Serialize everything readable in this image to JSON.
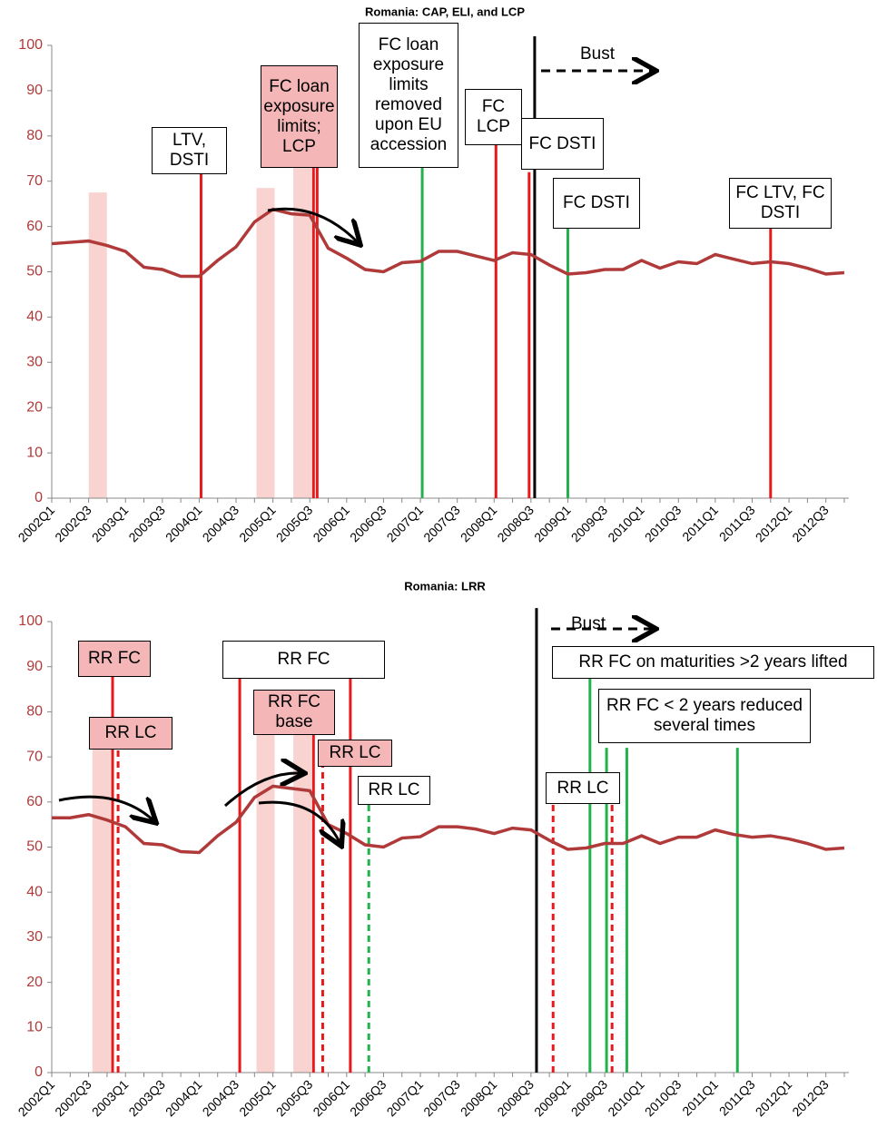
{
  "chart_data": [
    {
      "type": "line",
      "title": "Romania: CAP, ELI, and LCP",
      "categories": [
        "2002Q1",
        null,
        "2002Q3",
        null,
        "2003Q1",
        null,
        "2003Q3",
        null,
        "2004Q1",
        null,
        "2004Q3",
        null,
        "2005Q1",
        null,
        "2005Q3",
        null,
        "2006Q1",
        null,
        "2006Q3",
        null,
        "2007Q1",
        null,
        "2007Q3",
        null,
        "2008Q1",
        null,
        "2008Q3",
        null,
        "2009Q1",
        null,
        "2009Q3",
        null,
        "2010Q1",
        null,
        "2010Q3",
        null,
        "2011Q1",
        null,
        "2011Q3",
        null,
        "2012Q1",
        null,
        "2012Q3",
        null
      ],
      "values": [
        56.2,
        56.5,
        56.8,
        55.8,
        54.5,
        51,
        50.5,
        49,
        49,
        52.5,
        55.5,
        61,
        63.8,
        62.8,
        62.5,
        55.2,
        53,
        50.5,
        50,
        52,
        52.3,
        54.5,
        54.5,
        53.5,
        52.5,
        54.2,
        53.8,
        51.5,
        49.5,
        49.8,
        50.5,
        50.5,
        52.5,
        50.8,
        52.2,
        51.8,
        53.8,
        52.8,
        51.8,
        52.2,
        51.8,
        50.8,
        49.5,
        49.8
      ],
      "color": "#b03a3a",
      "ylim": [
        0,
        100
      ],
      "yticks": [
        0,
        10,
        20,
        30,
        40,
        50,
        60,
        70,
        80,
        90,
        100
      ],
      "shading": [
        {
          "x": 2.5,
          "top": 67.5
        },
        {
          "x": 11.6,
          "top": 68.5
        },
        {
          "x": 13.6,
          "top": 73
        }
      ],
      "events": [
        {
          "x": 8.1,
          "top": 72,
          "color": "#e8191a",
          "dash": false
        },
        {
          "x": 14.2,
          "top": 73,
          "color": "#e8191a",
          "dash": false
        },
        {
          "x": 14.4,
          "top": 73,
          "color": "#e8191a",
          "dash": false
        },
        {
          "x": 20.1,
          "top": 73,
          "color": "#22b14c",
          "dash": false
        },
        {
          "x": 24.1,
          "top": 79,
          "color": "#e8191a",
          "dash": false
        },
        {
          "x": 25.9,
          "top": 72,
          "color": "#e8191a",
          "dash": false
        },
        {
          "x": 26.2,
          "top": 102,
          "color": "#000000",
          "dash": false
        },
        {
          "x": 28,
          "top": 60,
          "color": "#22b14c",
          "dash": false
        },
        {
          "x": 39,
          "top": 60,
          "color": "#e8191a",
          "dash": false
        }
      ],
      "annotations": [
        "LTV, DSTI",
        "FC loan exposure limits; LCP",
        "FC loan exposure limits removed upon EU accession",
        "FC LCP",
        "FC DSTI",
        "FC DSTI",
        "FC LTV, FC DSTI"
      ],
      "bust_label": "Bust"
    },
    {
      "type": "line",
      "title": "Romania: LRR",
      "categories": [
        "2002Q1",
        null,
        "2002Q3",
        null,
        "2003Q1",
        null,
        "2003Q3",
        null,
        "2004Q1",
        null,
        "2004Q3",
        null,
        "2005Q1",
        null,
        "2005Q3",
        null,
        "2006Q1",
        null,
        "2006Q3",
        null,
        "2007Q1",
        null,
        "2007Q3",
        null,
        "2008Q1",
        null,
        "2008Q3",
        null,
        "2009Q1",
        null,
        "2009Q3",
        null,
        "2010Q1",
        null,
        "2010Q3",
        null,
        "2011Q1",
        null,
        "2011Q3",
        null,
        "2012Q1",
        null,
        "2012Q3",
        null
      ],
      "values": [
        56.5,
        56.5,
        57.2,
        56,
        54.5,
        50.8,
        50.5,
        49,
        48.8,
        52.5,
        55.5,
        61,
        63.5,
        63,
        62.5,
        55,
        53,
        50.5,
        50,
        52,
        52.3,
        54.5,
        54.5,
        54,
        53,
        54.2,
        53.8,
        51.5,
        49.5,
        49.8,
        50.8,
        50.8,
        52.5,
        50.8,
        52.2,
        52.2,
        53.8,
        52.8,
        52.2,
        52.5,
        51.8,
        50.8,
        49.5,
        49.8
      ],
      "color": "#b03a3a",
      "ylim": [
        0,
        100
      ],
      "yticks": [
        0,
        10,
        20,
        30,
        40,
        50,
        60,
        70,
        80,
        90,
        100
      ],
      "shading": [
        {
          "x": 2.7,
          "top": 75
        },
        {
          "x": 11.6,
          "top": 75
        },
        {
          "x": 13.6,
          "top": 75
        }
      ],
      "events": [
        {
          "x": 3.3,
          "top": 88,
          "color": "#e8191a",
          "dash": false
        },
        {
          "x": 3.6,
          "top": 78,
          "color": "#e8191a",
          "dash": true
        },
        {
          "x": 10.2,
          "top": 88,
          "color": "#e8191a",
          "dash": false
        },
        {
          "x": 16.2,
          "top": 88,
          "color": "#e8191a",
          "dash": false
        },
        {
          "x": 14.2,
          "top": 75,
          "color": "#e8191a",
          "dash": false
        },
        {
          "x": 14.7,
          "top": 68,
          "color": "#e8191a",
          "dash": true
        },
        {
          "x": 17.2,
          "top": 60,
          "color": "#22b14c",
          "dash": true
        },
        {
          "x": 26.3,
          "top": 103,
          "color": "#000000",
          "dash": false
        },
        {
          "x": 27.2,
          "top": 60,
          "color": "#e8191a",
          "dash": true
        },
        {
          "x": 29.2,
          "top": 88,
          "color": "#22b14c",
          "dash": false
        },
        {
          "x": 30.1,
          "top": 72,
          "color": "#22b14c",
          "dash": false
        },
        {
          "x": 30.4,
          "top": 60,
          "color": "#e8191a",
          "dash": true
        },
        {
          "x": 31.2,
          "top": 72,
          "color": "#22b14c",
          "dash": false
        },
        {
          "x": 37.2,
          "top": 72,
          "color": "#22b14c",
          "dash": false
        }
      ],
      "annotations": [
        "RR FC",
        "RR LC",
        "RR FC",
        "RR FC base",
        "RR LC",
        "RR LC",
        "RR LC",
        "RR FC on maturities >2 years lifted",
        "RR FC < 2 years reduced several times"
      ],
      "bust_label": "Bust"
    }
  ]
}
